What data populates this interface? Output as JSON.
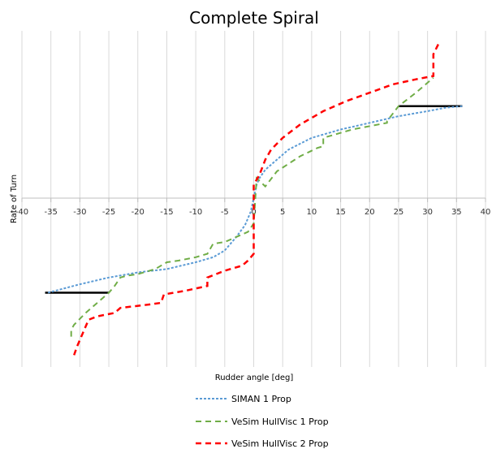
{
  "chart_data": {
    "type": "line",
    "title": "Complete Spiral",
    "xlabel": "Rudder angle [deg]",
    "ylabel": "Rate of Turn",
    "xlim": [
      -40,
      40
    ],
    "xticks": [
      -40,
      -35,
      -30,
      -25,
      -20,
      -15,
      -10,
      -5,
      0,
      5,
      10,
      15,
      20,
      25,
      30,
      35,
      40
    ],
    "ylim": [
      -1,
      1
    ],
    "vertical_grid": true,
    "legend_position": "bottom",
    "series": [
      {
        "name": "SIMAN 1 Prop",
        "color": "#5b9bd5",
        "dash": "dotted",
        "x": [
          -35.5,
          -30,
          -25,
          -20,
          -15,
          -10,
          -7,
          -5,
          -3,
          -1.5,
          -0.5,
          0,
          0.5,
          1,
          2,
          4,
          6,
          10,
          15,
          20,
          25,
          30,
          33,
          36
        ],
        "y": [
          -0.56,
          -0.51,
          -0.47,
          -0.44,
          -0.42,
          -0.38,
          -0.35,
          -0.31,
          -0.23,
          -0.16,
          -0.08,
          0.0,
          0.08,
          0.12,
          0.17,
          0.23,
          0.29,
          0.36,
          0.41,
          0.45,
          0.49,
          0.52,
          0.54,
          0.55
        ]
      },
      {
        "name": "VeSim HullVisc 1 Prop",
        "color": "#70ad47",
        "dash": "dashed",
        "x": [
          -31.5,
          -31.5,
          -31,
          -29,
          -27,
          -25,
          -24,
          -23,
          -22,
          -20,
          -17,
          -16,
          -15,
          -13,
          -10,
          -8,
          -7,
          -5,
          -3,
          -1,
          0,
          0.5,
          2,
          4,
          8,
          11,
          12,
          12,
          17,
          23,
          23,
          25,
          28,
          31
        ],
        "y": [
          -0.82,
          -0.78,
          -0.75,
          -0.68,
          -0.62,
          -0.56,
          -0.52,
          -0.47,
          -0.46,
          -0.45,
          -0.42,
          -0.4,
          -0.38,
          -0.37,
          -0.35,
          -0.33,
          -0.27,
          -0.26,
          -0.23,
          -0.2,
          -0.15,
          0.12,
          0.07,
          0.16,
          0.25,
          0.3,
          0.31,
          0.36,
          0.41,
          0.45,
          0.46,
          0.55,
          0.63,
          0.72
        ]
      },
      {
        "name": "VeSim HullVisc 2 Prop",
        "color": "#ff0000",
        "dash": "dashed",
        "x": [
          -31,
          -30.5,
          -28.5,
          -27,
          -24,
          -23,
          -18,
          -16,
          -15.5,
          -12,
          -8,
          -8,
          -5,
          -2,
          -1,
          0,
          0,
          0,
          1,
          2,
          3,
          5,
          8,
          12,
          16,
          20,
          24,
          28,
          31,
          31,
          31,
          32
        ],
        "y": [
          -0.93,
          -0.88,
          -0.72,
          -0.7,
          -0.68,
          -0.65,
          -0.63,
          -0.62,
          -0.57,
          -0.55,
          -0.52,
          -0.47,
          -0.43,
          -0.4,
          -0.37,
          -0.33,
          0.0,
          0.08,
          0.14,
          0.23,
          0.29,
          0.36,
          0.44,
          0.52,
          0.58,
          0.63,
          0.68,
          0.71,
          0.73,
          0.76,
          0.86,
          0.93
        ]
      }
    ],
    "annotations": [
      {
        "type": "segment",
        "color": "#000000",
        "x": [
          -36,
          -25
        ],
        "y": [
          -0.56,
          -0.56
        ]
      },
      {
        "type": "segment",
        "color": "#000000",
        "x": [
          25,
          36
        ],
        "y": [
          0.55,
          0.55
        ]
      }
    ]
  }
}
